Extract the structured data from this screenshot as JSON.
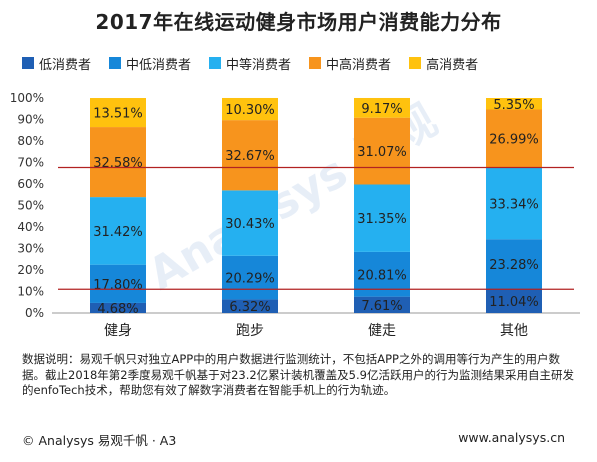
{
  "title": "2017年在线运动健身市场用户消费能力分布",
  "chart_data": {
    "type": "bar",
    "stacked": true,
    "categories": [
      "健身",
      "跑步",
      "健走",
      "其他"
    ],
    "series": [
      {
        "name": "低消费者",
        "color": "#1f5fb4",
        "values": [
          4.68,
          6.32,
          7.61,
          11.04
        ],
        "labels": [
          "4.68%",
          "6.32%",
          "7.61%",
          "11.04%"
        ]
      },
      {
        "name": "中低消费者",
        "color": "#1687d9",
        "values": [
          17.8,
          20.29,
          20.81,
          23.28
        ],
        "labels": [
          "17.80%",
          "20.29%",
          "20.81%",
          "23.28%"
        ]
      },
      {
        "name": "中等消费者",
        "color": "#25b0f0",
        "values": [
          31.42,
          30.43,
          31.35,
          33.34
        ],
        "labels": [
          "31.42%",
          "30.43%",
          "31.35%",
          "33.34%"
        ]
      },
      {
        "name": "中高消费者",
        "color": "#f7941d",
        "values": [
          32.58,
          32.67,
          31.07,
          26.99
        ],
        "labels": [
          "32.58%",
          "32.67%",
          "31.07%",
          "26.99%"
        ]
      },
      {
        "name": "高消费者",
        "color": "#ffc20e",
        "values": [
          13.51,
          10.3,
          9.17,
          5.35
        ],
        "labels": [
          "13.51%",
          "10.30%",
          "9.17%",
          "5.35%"
        ]
      }
    ],
    "y_ticks": [
      "0%",
      "10%",
      "20%",
      "30%",
      "40%",
      "50%",
      "60%",
      "70%",
      "80%",
      "90%",
      "100%"
    ],
    "ylim": [
      0,
      100
    ],
    "reference_lines": [
      {
        "value": 11.04,
        "color": "#b22222"
      },
      {
        "value": 67.66,
        "color": "#b22222"
      }
    ],
    "legend_position": "top",
    "grid": false
  },
  "watermark": "Analysys 易观",
  "note": "数据说明：易观千帆只对独立APP中的用户数据进行监测统计，不包括APP之外的调用等行为产生的用户数据。截止2018年第2季度易观千帆基于对23.2亿累计装机覆盖及5.9亿活跃用户的行为监测结果采用自主研发的enfoTech技术，帮助您有效了解数字消费者在智能手机上的行为轨迹。",
  "footer": {
    "left": "© Analysys 易观千帆 · A3",
    "right": "www.analysys.cn"
  }
}
